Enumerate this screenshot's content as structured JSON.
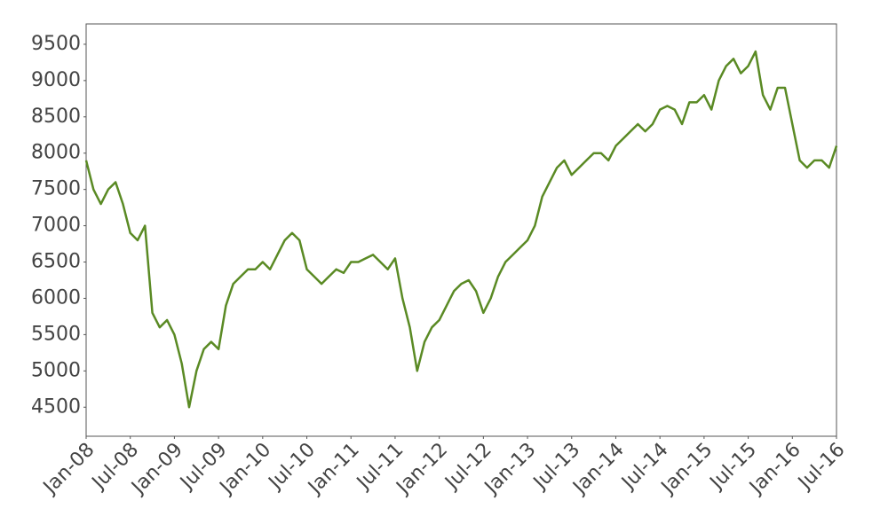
{
  "chart_data": {
    "type": "line",
    "x": [
      "2008-01",
      "2008-02",
      "2008-03",
      "2008-04",
      "2008-05",
      "2008-06",
      "2008-07",
      "2008-08",
      "2008-09",
      "2008-10",
      "2008-11",
      "2008-12",
      "2009-01",
      "2009-02",
      "2009-03",
      "2009-04",
      "2009-05",
      "2009-06",
      "2009-07",
      "2009-08",
      "2009-09",
      "2009-10",
      "2009-11",
      "2009-12",
      "2010-01",
      "2010-02",
      "2010-03",
      "2010-04",
      "2010-05",
      "2010-06",
      "2010-07",
      "2010-08",
      "2010-09",
      "2010-10",
      "2010-11",
      "2010-12",
      "2011-01",
      "2011-02",
      "2011-03",
      "2011-04",
      "2011-05",
      "2011-06",
      "2011-07",
      "2011-08",
      "2011-09",
      "2011-10",
      "2011-11",
      "2011-12",
      "2012-01",
      "2012-02",
      "2012-03",
      "2012-04",
      "2012-05",
      "2012-06",
      "2012-07",
      "2012-08",
      "2012-09",
      "2012-10",
      "2012-11",
      "2012-12",
      "2013-01",
      "2013-02",
      "2013-03",
      "2013-04",
      "2013-05",
      "2013-06",
      "2013-07",
      "2013-08",
      "2013-09",
      "2013-10",
      "2013-11",
      "2013-12",
      "2014-01",
      "2014-02",
      "2014-03",
      "2014-04",
      "2014-05",
      "2014-06",
      "2014-07",
      "2014-08",
      "2014-09",
      "2014-10",
      "2014-11",
      "2014-12",
      "2015-01",
      "2015-02",
      "2015-03",
      "2015-04",
      "2015-05",
      "2015-06",
      "2015-07",
      "2015-08",
      "2015-09",
      "2015-10",
      "2015-11",
      "2015-12",
      "2016-01",
      "2016-02",
      "2016-03",
      "2016-04",
      "2016-05",
      "2016-06",
      "2016-07"
    ],
    "values": [
      7900,
      7500,
      7300,
      7500,
      7600,
      7300,
      6900,
      6800,
      7000,
      5800,
      5600,
      5700,
      5500,
      5100,
      4500,
      5000,
      5300,
      5400,
      5300,
      5900,
      6200,
      6300,
      6400,
      6400,
      6500,
      6400,
      6600,
      6800,
      6900,
      6800,
      6400,
      6300,
      6200,
      6300,
      6400,
      6350,
      6500,
      6500,
      6550,
      6600,
      6500,
      6400,
      6550,
      6000,
      5600,
      5000,
      5400,
      5600,
      5700,
      5900,
      6100,
      6200,
      6250,
      6100,
      5800,
      6000,
      6300,
      6500,
      6600,
      6700,
      6800,
      7000,
      7400,
      7600,
      7800,
      7900,
      7700,
      7800,
      7900,
      8000,
      8000,
      7900,
      8100,
      8200,
      8300,
      8400,
      8300,
      8400,
      8600,
      8650,
      8600,
      8400,
      8700,
      8700,
      8800,
      8600,
      9000,
      9200,
      9300,
      9100,
      9200,
      9400,
      8800,
      8600,
      8900,
      8900,
      8400,
      7900,
      7800,
      7900,
      7900,
      7800,
      8100
    ],
    "color": "#5a8a24",
    "xlim": [
      "2008-01",
      "2016-07"
    ],
    "xticks": [
      {
        "value": "2008-01",
        "label": "Jan-08"
      },
      {
        "value": "2008-07",
        "label": "Jul-08"
      },
      {
        "value": "2009-01",
        "label": "Jan-09"
      },
      {
        "value": "2009-07",
        "label": "Jul-09"
      },
      {
        "value": "2010-01",
        "label": "Jan-10"
      },
      {
        "value": "2010-07",
        "label": "Jul-10"
      },
      {
        "value": "2011-01",
        "label": "Jan-11"
      },
      {
        "value": "2011-07",
        "label": "Jul-11"
      },
      {
        "value": "2012-01",
        "label": "Jan-12"
      },
      {
        "value": "2012-07",
        "label": "Jul-12"
      },
      {
        "value": "2013-01",
        "label": "Jan-13"
      },
      {
        "value": "2013-07",
        "label": "Jul-13"
      },
      {
        "value": "2014-01",
        "label": "Jan-14"
      },
      {
        "value": "2014-07",
        "label": "Jul-14"
      },
      {
        "value": "2015-01",
        "label": "Jan-15"
      },
      {
        "value": "2015-07",
        "label": "Jul-15"
      },
      {
        "value": "2016-01",
        "label": "Jan-16"
      },
      {
        "value": "2016-07",
        "label": "Jul-16"
      }
    ],
    "ylim": [
      4100,
      9780
    ],
    "yticks": [
      4500,
      5000,
      5500,
      6000,
      6500,
      7000,
      7500,
      8000,
      8500,
      9000,
      9500
    ],
    "grid": false
  }
}
